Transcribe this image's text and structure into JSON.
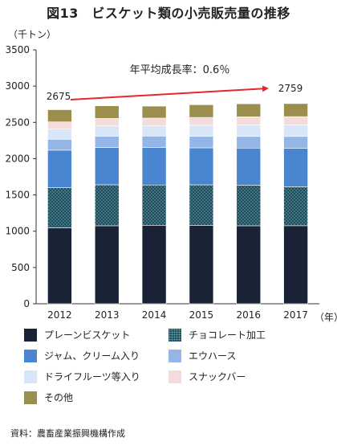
{
  "title": "図13　ビスケット類の小売販売量の推移",
  "unit_label": "（千トン）",
  "year_suffix": "（年）",
  "source": "資料：農畜産業振興機構作成",
  "annotation": {
    "text": "年平均成長率：0.6％",
    "start_label": "2675",
    "end_label": "2759",
    "arrow_color": "#e8262e"
  },
  "chart_data": {
    "type": "bar",
    "stacked": true,
    "title": "図13　ビスケット類の小売販売量の推移",
    "ylabel": "（千トン）",
    "xlabel": "（年）",
    "ylim": [
      0,
      3500
    ],
    "yticks": [
      0,
      500,
      1000,
      1500,
      2000,
      2500,
      3000,
      3500
    ],
    "grid": false,
    "legend_position": "bottom",
    "categories": [
      "2012",
      "2013",
      "2014",
      "2015",
      "2016",
      "2017"
    ],
    "totals": [
      2675,
      2729,
      2724,
      2743,
      2756,
      2759
    ],
    "series": [
      {
        "name": "プレーンビスケット",
        "color": "#1a2236",
        "pattern": "solid",
        "values": [
          1047,
          1075,
          1082,
          1079,
          1075,
          1076
        ]
      },
      {
        "name": "チョコレート加工",
        "color": "#1f4e5f",
        "pattern": "dots",
        "values": [
          555,
          565,
          555,
          560,
          560,
          537
        ]
      },
      {
        "name": "ジャム、クリーム入り",
        "color": "#4a86d0",
        "pattern": "solid",
        "values": [
          515,
          515,
          515,
          510,
          511,
          528
        ]
      },
      {
        "name": "エウハース",
        "color": "#93b6e6",
        "pattern": "solid",
        "values": [
          150,
          155,
          160,
          160,
          160,
          165
        ]
      },
      {
        "name": "ドライフルーツ等入り",
        "color": "#d9e6f7",
        "pattern": "solid",
        "values": [
          140,
          140,
          140,
          150,
          160,
          160
        ]
      },
      {
        "name": "スナックバー",
        "color": "#f4dcdc",
        "pattern": "solid",
        "values": [
          100,
          104,
          107,
          109,
          110,
          113
        ]
      },
      {
        "name": "その他",
        "color": "#9c8f4e",
        "pattern": "solid",
        "values": [
          168,
          175,
          165,
          175,
          180,
          180
        ]
      }
    ]
  }
}
